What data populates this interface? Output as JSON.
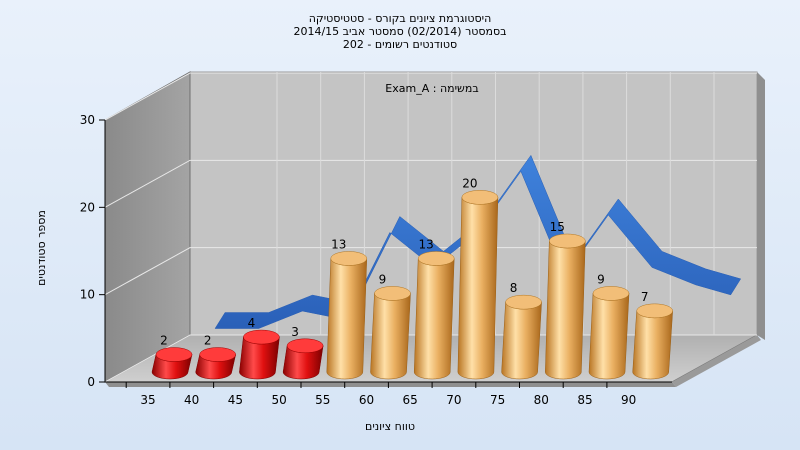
{
  "chart_data": {
    "type": "bar",
    "title": [
      "היסטוגרמת ציונים בקורס - סטטיסטיקה",
      "בסמסטר  (02/2014)  סמסטר אביב 2014/15",
      "202 - סטודנטים רשומים"
    ],
    "annotation": "Exam_A : במשימה",
    "xlabel": "טווח ציונים",
    "ylabel": "מספר סטודנטים",
    "ylim": [
      0,
      30
    ],
    "yticks": [
      0,
      10,
      20,
      30
    ],
    "x_ticks": [
      35,
      40,
      45,
      50,
      55,
      60,
      65,
      70,
      75,
      80,
      85,
      90
    ],
    "bins": [
      "35-40",
      "40-45",
      "45-50",
      "50-55",
      "55-60",
      "60-65",
      "65-70",
      "70-75",
      "75-80",
      "80-85",
      "85-90",
      "90-95"
    ],
    "values": [
      2,
      2,
      4,
      3,
      13,
      9,
      13,
      20,
      8,
      15,
      9,
      7
    ],
    "bar_colors": [
      "#e01010",
      "#e01010",
      "#e01010",
      "#e01010",
      "#e6a146",
      "#e6a146",
      "#e6a146",
      "#e6a146",
      "#e6a146",
      "#e6a146",
      "#e6a146",
      "#e6a146"
    ],
    "series_line": {
      "type": "area-ribbon",
      "color": "#2f6fca",
      "values": [
        2,
        2,
        4,
        3,
        13,
        9,
        13,
        20,
        8,
        15,
        9,
        7
      ]
    },
    "grid": true,
    "legend": "none"
  }
}
